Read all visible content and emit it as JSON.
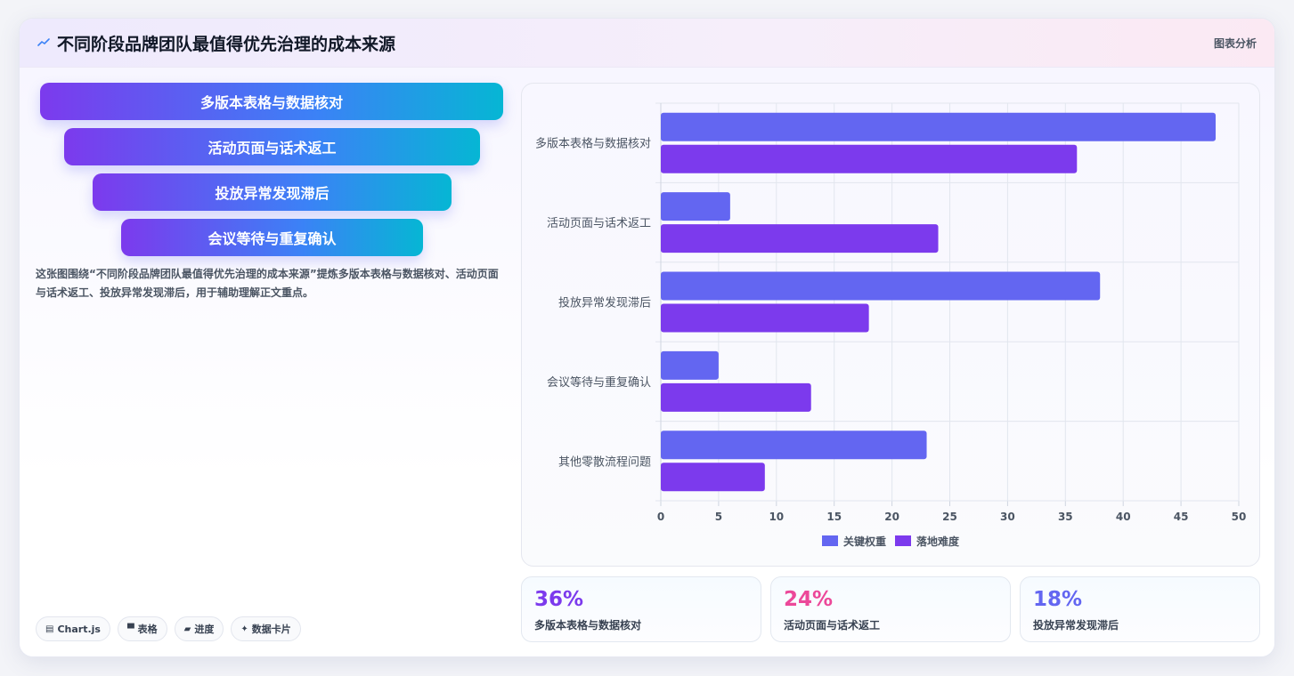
{
  "header": {
    "title": "不同阶段品牌团队最值得优先治理的成本来源",
    "right_label": "图表分析"
  },
  "funnel": {
    "items": [
      "多版本表格与数据核对",
      "活动页面与话术返工",
      "投放异常发现滞后",
      "会议等待与重复确认"
    ]
  },
  "description": "这张图围绕“不同阶段品牌团队最值得优先治理的成本来源”提炼多版本表格与数据核对、活动页面与话术返工、投放异常发现滞后，用于辅助理解正文重点。",
  "tags": [
    {
      "icon": "chart-icon",
      "glyph": "▤",
      "label": "Chart.js"
    },
    {
      "icon": "table-icon",
      "glyph": "▀",
      "label": "表格"
    },
    {
      "icon": "progress-icon",
      "glyph": "▰",
      "label": "进度"
    },
    {
      "icon": "sparkle-icon",
      "glyph": "✦",
      "label": "数据卡片"
    }
  ],
  "stats": [
    {
      "value": "36%",
      "label": "多版本表格与数据核对",
      "color": "#7c3aed"
    },
    {
      "value": "24%",
      "label": "活动页面与话术返工",
      "color": "#ec4899"
    },
    {
      "value": "18%",
      "label": "投放异常发现滞后",
      "color": "#6366f1"
    }
  ],
  "colors": {
    "series_1": "#6366f1",
    "series_2": "#7c3aed",
    "grid": "#e2e6ee"
  },
  "chart_data": {
    "type": "bar",
    "orientation": "horizontal",
    "categories": [
      "多版本表格与数据核对",
      "活动页面与话术返工",
      "投放异常发现滞后",
      "会议等待与重复确认",
      "其他零散流程问题"
    ],
    "series": [
      {
        "name": "关键权重",
        "values": [
          48,
          6,
          38,
          5,
          23
        ]
      },
      {
        "name": "落地难度",
        "values": [
          36,
          24,
          18,
          13,
          9
        ]
      }
    ],
    "xlim": [
      0,
      50
    ],
    "xticks": [
      0,
      5,
      10,
      15,
      20,
      25,
      30,
      35,
      40,
      45,
      50
    ],
    "grid": true,
    "legend_position": "bottom"
  }
}
